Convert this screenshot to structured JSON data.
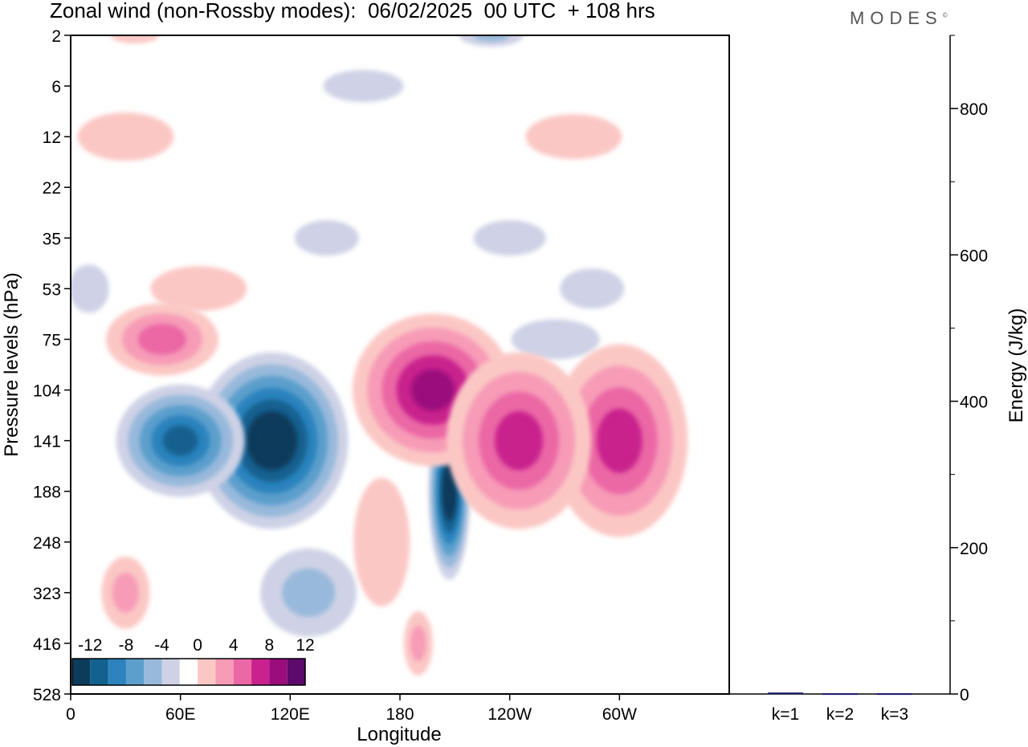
{
  "title": "Zonal wind (non-Rossby modes):  06/02/2025  00 UTC  + 108 hrs",
  "logo_text": "MODES",
  "logo_mark": "©",
  "chart_data": [
    {
      "type": "heatmap",
      "description_free": true,
      "xlabel": "Longitude",
      "ylabel": "Pressure levels (hPa)",
      "x_ticks": [
        "0",
        "60E",
        "120E",
        "180",
        "120W",
        "60W"
      ],
      "y_ticks": [
        "2",
        "6",
        "12",
        "22",
        "35",
        "53",
        "75",
        "104",
        "141",
        "188",
        "248",
        "323",
        "416",
        "528"
      ],
      "colorbar": {
        "labels": [
          "-12",
          "-8",
          "-4",
          "0",
          "4",
          "8",
          "12"
        ],
        "levels": [
          -14,
          -12,
          -10,
          -8,
          -6,
          -4,
          -2,
          2,
          4,
          6,
          8,
          10,
          12,
          14
        ],
        "colors": [
          "#0d3b5c",
          "#12618f",
          "#2c83bd",
          "#5c9fcc",
          "#98b9db",
          "#cfd2e6",
          "#ffffff",
          "#fbc7c4",
          "#f79bb7",
          "#eb67a5",
          "#c9218d",
          "#9b0c7d",
          "#5c0a6b"
        ]
      },
      "features": [
        {
          "sign": "negative",
          "lon_center": 110,
          "level_center": 141,
          "peak": -14
        },
        {
          "sign": "negative",
          "lon_center": 60,
          "level_center": 141,
          "peak": -10
        },
        {
          "sign": "negative",
          "lon_center": 207,
          "level_center": 188,
          "peak": -14
        },
        {
          "sign": "positive",
          "lon_center": 198,
          "level_center": 104,
          "peak": 10
        },
        {
          "sign": "positive",
          "lon_center": 300,
          "level_center": 141,
          "peak": 8
        },
        {
          "sign": "positive",
          "lon_center": 245,
          "level_center": 141,
          "peak": 8
        },
        {
          "sign": "positive",
          "lon_center": 50,
          "level_center": 75,
          "peak": 6
        }
      ]
    },
    {
      "type": "bar",
      "categories": [
        "k=1",
        "k=2",
        "k=3"
      ],
      "values": [
        2,
        1,
        1
      ],
      "ylabel": "Energy (J/kg)",
      "y_ticks": [
        "0",
        "200",
        "400",
        "600",
        "800"
      ],
      "ylim": [
        0,
        900
      ],
      "bar_color": "#1a1a6e"
    }
  ]
}
